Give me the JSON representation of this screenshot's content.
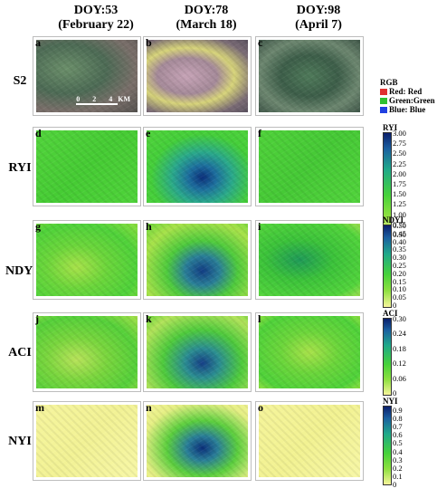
{
  "columns": [
    {
      "doy": "DOY:53",
      "date": "(February 22)"
    },
    {
      "doy": "DOY:78",
      "date": "(March 18)"
    },
    {
      "doy": "DOY:98",
      "date": "(April 7)"
    }
  ],
  "rows": [
    "S2",
    "RYI",
    "NDYI",
    "ACI",
    "NYI"
  ],
  "panel_letters": [
    "a",
    "b",
    "c",
    "d",
    "e",
    "f",
    "g",
    "h",
    "i",
    "j",
    "k",
    "l",
    "m",
    "n",
    "o"
  ],
  "scalebar": {
    "ticks": "0 2 4",
    "unit": "KM"
  },
  "rgb_legend": {
    "title": "RGB",
    "items": [
      {
        "label": "Red: Red",
        "color": "#e03030"
      },
      {
        "label": "Green:Green",
        "color": "#30c030"
      },
      {
        "label": "Blue: Blue",
        "color": "#2040e0"
      }
    ]
  },
  "colorbars": [
    {
      "title": "RYI",
      "ticks": [
        "3.00",
        "2.75",
        "2.50",
        "2.25",
        "2.00",
        "1.75",
        "1.50",
        "1.25",
        "1.00",
        "0.75",
        "0.50"
      ]
    },
    {
      "title": "NDYI",
      "ticks": [
        "0.50",
        "0.45",
        "0.40",
        "0.35",
        "0.30",
        "0.25",
        "0.20",
        "0.15",
        "0.10",
        "0.05",
        "0"
      ]
    },
    {
      "title": "ACI",
      "ticks": [
        "0.30",
        "0.24",
        "0.18",
        "0.12",
        "0.06",
        "0"
      ]
    },
    {
      "title": "NYI",
      "ticks": [
        "0.9",
        "0.8",
        "0.7",
        "0.6",
        "0.5",
        "0.4",
        "0.3",
        "0.2",
        "0.1",
        "0"
      ]
    }
  ],
  "colors": {
    "index_high": "#0b1f6b",
    "index_mid": "#1fa88a",
    "index_green": "#46d23a",
    "index_low": "#f7f59a"
  }
}
